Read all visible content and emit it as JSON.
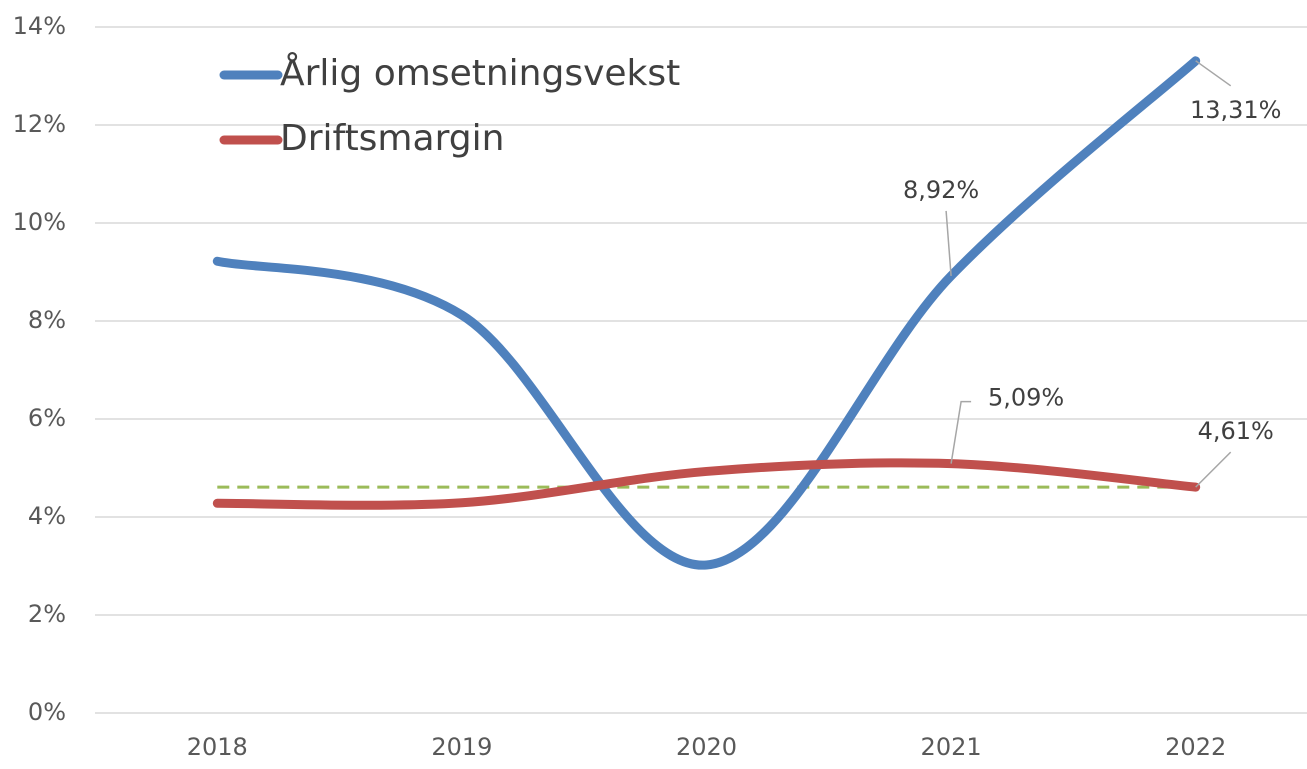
{
  "chart_data": {
    "type": "line",
    "categories": [
      "2018",
      "2019",
      "2020",
      "2021",
      "2022"
    ],
    "series": [
      {
        "name": "Årlig omsetningsvekst",
        "color": "#4f81bd",
        "values": [
          9.22,
          8.12,
          3.02,
          8.92,
          13.31
        ],
        "value_labels": [
          null,
          null,
          null,
          "8,92%",
          "13,31%"
        ]
      },
      {
        "name": "Driftsmargin",
        "color": "#c0504d",
        "values": [
          4.28,
          4.29,
          4.93,
          5.09,
          4.61
        ],
        "value_labels": [
          null,
          null,
          null,
          "5,09%",
          "4,61%"
        ]
      }
    ],
    "reference_line": {
      "value": 4.61,
      "color": "#9bbb59",
      "dashed": true
    },
    "ylim": [
      0,
      14
    ],
    "yticks": [
      {
        "value": 0,
        "label": "0%"
      },
      {
        "value": 2,
        "label": "2%"
      },
      {
        "value": 4,
        "label": "4%"
      },
      {
        "value": 6,
        "label": "6%"
      },
      {
        "value": 8,
        "label": "8%"
      },
      {
        "value": 10,
        "label": "10%"
      },
      {
        "value": 12,
        "label": "12%"
      },
      {
        "value": 14,
        "label": "14%"
      }
    ],
    "grid": true,
    "smooth": true,
    "legend": "upper left"
  }
}
